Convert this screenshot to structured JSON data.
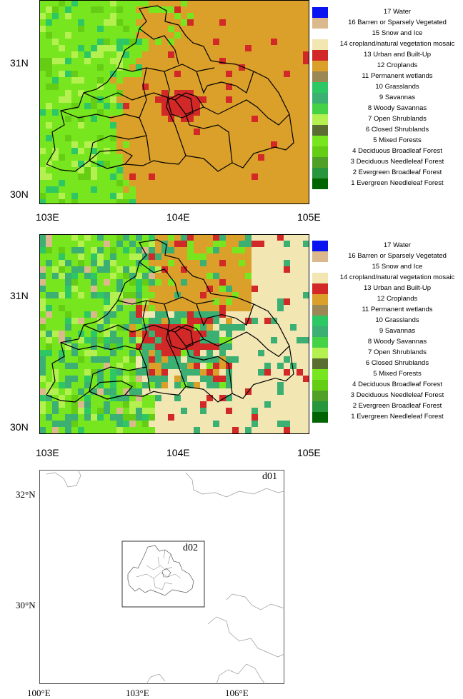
{
  "legend_classes": [
    {
      "id": 17,
      "label": "17 Water",
      "color": "#0a14f0"
    },
    {
      "id": 16,
      "label": "16 Barren or Sparsely Vegetated",
      "color": "#dcb98c"
    },
    {
      "id": 15,
      "label": "15 Snow and Ice",
      "color": "#ffffff"
    },
    {
      "id": 14,
      "label": "14 cropland/natural vegetation mosaic",
      "color": "#f2e6b3"
    },
    {
      "id": 13,
      "label": "13 Urban and Built-Up",
      "color": "#d22828"
    },
    {
      "id": 12,
      "label": "12 Croplands",
      "color": "#daa02a"
    },
    {
      "id": 11,
      "label": "11 Permanent wetlands",
      "color": "#9c8855"
    },
    {
      "id": 10,
      "label": "10 Grasslands",
      "color": "#2dc864"
    },
    {
      "id": 9,
      "label": "9 Savannas",
      "color": "#3caf73"
    },
    {
      "id": 8,
      "label": "8 Woody Savannas",
      "color": "#46d246"
    },
    {
      "id": 7,
      "label": "7 Open Shrublands",
      "color": "#b4f050"
    },
    {
      "id": 6,
      "label": "6 Closed Shrublands",
      "color": "#5a6e32"
    },
    {
      "id": 5,
      "label": "5 Mixed Forests",
      "color": "#78e61e"
    },
    {
      "id": 4,
      "label": "4 Deciduous Broadleaf Forest",
      "color": "#64cd14"
    },
    {
      "id": 3,
      "label": "3 Deciduous Needleleaf Forest",
      "color": "#50a028"
    },
    {
      "id": 2,
      "label": "2 Evergreen Broadleaf Forest",
      "color": "#28963c"
    },
    {
      "id": 1,
      "label": "1 Evergreen Needleleaf Forest",
      "color": "#006400"
    }
  ],
  "panel1": {
    "y_ticks": [
      {
        "label": "31N"
      },
      {
        "label": "30N"
      }
    ],
    "x_ticks": [
      {
        "label": "103E"
      },
      {
        "label": "104E"
      },
      {
        "label": "105E"
      }
    ]
  },
  "panel2": {
    "y_ticks": [
      {
        "label": "31N"
      },
      {
        "label": "30N"
      }
    ],
    "x_ticks": [
      {
        "label": "103E"
      },
      {
        "label": "104E"
      },
      {
        "label": "105E"
      }
    ]
  },
  "panel3": {
    "domain_outer_label": "d01",
    "domain_inner_label": "d02",
    "y_ticks": [
      {
        "label": "32°N"
      },
      {
        "label": "30°N"
      }
    ],
    "x_ticks": [
      {
        "label": "100°E"
      },
      {
        "label": "103°E"
      },
      {
        "label": "106°E"
      }
    ]
  }
}
